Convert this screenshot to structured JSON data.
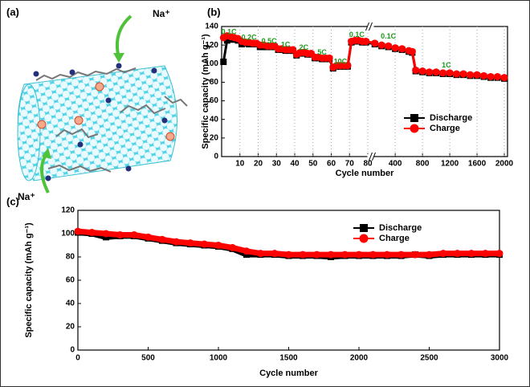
{
  "illustration": {
    "label": "(a)",
    "ions": [
      "Na⁺",
      "Na⁺"
    ]
  },
  "chart_data": [
    {
      "type": "line",
      "label": "(b)",
      "ylabel": "Specific capacity (mAh g⁻¹)",
      "xlabel": "Cycle number",
      "x_segments": [
        {
          "xlim": [
            0,
            80
          ],
          "xticks": [
            10,
            20,
            30,
            40,
            50,
            60,
            70,
            80
          ]
        },
        {
          "xlim": [
            80,
            2000
          ],
          "xticks": [
            400,
            800,
            1200,
            1600,
            2000
          ]
        }
      ],
      "ylim": [
        0,
        140
      ],
      "yticks": [
        0,
        20,
        40,
        60,
        80,
        100,
        120,
        140
      ],
      "grid_x": true,
      "legend": "center right",
      "annotations": [
        "0.1C",
        "0.2C",
        "0.5C",
        "1C",
        "2C",
        "5C",
        "10C",
        "0.1C",
        "0.1C",
        "1C"
      ],
      "x": [
        1,
        3,
        5,
        7,
        9,
        11,
        13,
        15,
        17,
        19,
        21,
        23,
        25,
        27,
        29,
        31,
        33,
        35,
        37,
        39,
        41,
        43,
        45,
        47,
        49,
        51,
        53,
        55,
        57,
        59,
        61,
        63,
        65,
        67,
        69,
        71,
        73,
        75,
        77,
        79,
        100,
        200,
        300,
        400,
        500,
        600,
        650,
        700,
        800,
        900,
        1000,
        1100,
        1200,
        1300,
        1400,
        1500,
        1600,
        1700,
        1800,
        1900,
        2000
      ],
      "series": [
        {
          "name": "Discharge",
          "color": "#000000",
          "marker": "square",
          "values": [
            102,
            125,
            126,
            126,
            125,
            121,
            122,
            121,
            121,
            121,
            118,
            118,
            118,
            118,
            118,
            115,
            115,
            114,
            114,
            114,
            109,
            111,
            111,
            110,
            110,
            106,
            106,
            105,
            105,
            105,
            95,
            97,
            97,
            97,
            97,
            123,
            124,
            124,
            123,
            123,
            121,
            119,
            118,
            116,
            115,
            113,
            112,
            92,
            91,
            90,
            90,
            89,
            89,
            88,
            88,
            87,
            87,
            86,
            85,
            85,
            84
          ]
        },
        {
          "name": "Charge",
          "color": "#ff0000",
          "marker": "circle",
          "values": [
            128,
            130,
            129,
            128,
            127,
            124,
            123,
            123,
            122,
            122,
            120,
            120,
            119,
            119,
            119,
            116,
            116,
            115,
            115,
            115,
            110,
            112,
            112,
            111,
            111,
            107,
            107,
            106,
            106,
            106,
            96,
            98,
            98,
            98,
            98,
            124,
            125,
            125,
            124,
            124,
            122,
            120,
            119,
            117,
            116,
            114,
            113,
            93,
            92,
            91,
            91,
            90,
            90,
            89,
            89,
            88,
            88,
            87,
            86,
            86,
            85
          ]
        }
      ]
    },
    {
      "type": "line",
      "label": "(c)",
      "ylabel": "Specific capacity (mAh g⁻¹)",
      "xlabel": "Cycle number",
      "x_segments": [
        {
          "xlim": [
            0,
            3000
          ],
          "xticks": [
            0,
            500,
            1000,
            1500,
            2000,
            2500,
            3000
          ]
        }
      ],
      "ylim": [
        0,
        120
      ],
      "yticks": [
        0,
        20,
        40,
        60,
        80,
        100,
        120
      ],
      "grid_x": false,
      "legend": "upper right",
      "x": [
        0,
        100,
        200,
        300,
        400,
        500,
        600,
        700,
        800,
        900,
        1000,
        1100,
        1200,
        1300,
        1400,
        1500,
        1600,
        1700,
        1800,
        1900,
        2000,
        2100,
        2200,
        2300,
        2400,
        2500,
        2600,
        2700,
        2800,
        2900,
        3000
      ],
      "series": [
        {
          "name": "Discharge",
          "color": "#000000",
          "marker": "square",
          "values": [
            101,
            100,
            97,
            98,
            98,
            96,
            94,
            92,
            91,
            90,
            89,
            87,
            82,
            82,
            82,
            81,
            81,
            81,
            80,
            81,
            81,
            81,
            81,
            81,
            82,
            81,
            82,
            82,
            82,
            82,
            82
          ]
        },
        {
          "name": "Charge",
          "color": "#ff0000",
          "marker": "circle",
          "values": [
            102,
            101,
            100,
            99,
            99,
            97,
            95,
            93,
            92,
            91,
            90,
            88,
            85,
            83,
            83,
            82,
            82,
            82,
            82,
            82,
            82,
            82,
            82,
            82,
            82,
            82,
            83,
            83,
            83,
            83,
            83
          ]
        }
      ]
    }
  ]
}
